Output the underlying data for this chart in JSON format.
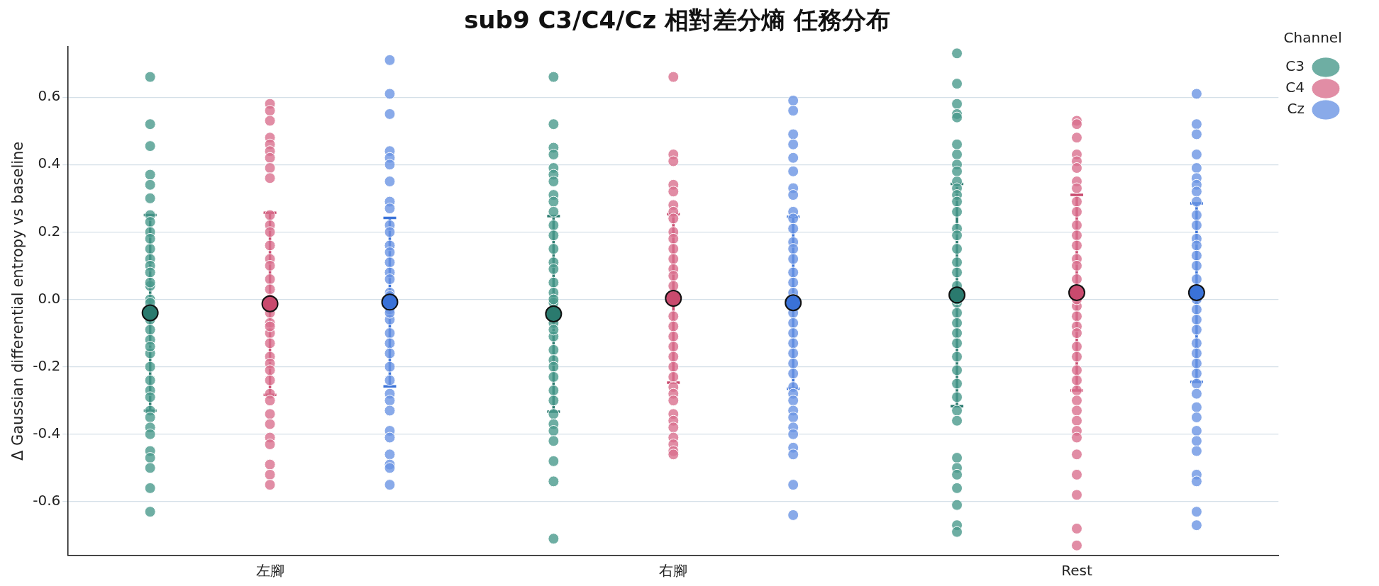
{
  "chart_data": {
    "type": "scatter",
    "title": "sub9 C3/C4/Cz 相對差分熵 任務分布",
    "ylabel": "Δ Gaussian differential entropy vs baseline",
    "categories": [
      "左腳",
      "右腳",
      "Rest"
    ],
    "ylim": [
      -0.76,
      0.75
    ],
    "yticks": [
      -0.6,
      -0.4,
      -0.2,
      {
        "value": 0,
        "label": "0.0"
      },
      0.2,
      0.4,
      0.6
    ],
    "grid": "y",
    "legend": "top right",
    "legend_title": "Channel",
    "marker": "circle",
    "series": [
      {
        "name": "C3",
        "color": "#4a9a8c",
        "x": [
          "左腳",
          "左腳",
          "左腳",
          "左腳",
          "左腳",
          "左腳",
          "左腳",
          "左腳",
          "左腳",
          "左腳",
          "左腳",
          "左腳",
          "左腳",
          "左腳",
          "左腳",
          "左腳",
          "左腳",
          "左腳",
          "左腳",
          "左腳",
          "左腳",
          "左腳",
          "左腳",
          "左腳",
          "左腳",
          "左腳",
          "左腳",
          "左腳",
          "左腳",
          "左腳",
          "左腳",
          "左腳",
          "左腳",
          "左腳",
          "左腳",
          "左腳",
          "左腳",
          "左腳",
          "右腳",
          "右腳",
          "右腳",
          "右腳",
          "右腳",
          "右腳",
          "右腳",
          "右腳",
          "右腳",
          "右腳",
          "右腳",
          "右腳",
          "右腳",
          "右腳",
          "右腳",
          "右腳",
          "右腳",
          "右腳",
          "右腳",
          "右腳",
          "右腳",
          "右腳",
          "右腳",
          "右腳",
          "右腳",
          "右腳",
          "右腳",
          "右腳",
          "右腳",
          "右腳",
          "右腳",
          "右腳",
          "右腳",
          "右腳",
          "右腳",
          "右腳",
          "Rest",
          "Rest",
          "Rest",
          "Rest",
          "Rest",
          "Rest",
          "Rest",
          "Rest",
          "Rest",
          "Rest",
          "Rest",
          "Rest",
          "Rest",
          "Rest",
          "Rest",
          "Rest",
          "Rest",
          "Rest",
          "Rest",
          "Rest",
          "Rest",
          "Rest",
          "Rest",
          "Rest",
          "Rest",
          "Rest",
          "Rest",
          "Rest",
          "Rest",
          "Rest",
          "Rest",
          "Rest",
          "Rest",
          "Rest",
          "Rest",
          "Rest",
          "Rest",
          "Rest",
          "Rest",
          "Rest"
        ],
        "values": [
          0.66,
          0.52,
          0.455,
          0.37,
          0.34,
          0.3,
          0.25,
          0.23,
          0.2,
          0.15,
          0.12,
          0.1,
          0.08,
          0.04,
          0.0,
          -0.01,
          null,
          -0.06,
          -0.09,
          -0.12,
          -0.16,
          -0.2,
          -0.24,
          -0.27,
          -0.29,
          -0.33,
          -0.35,
          -0.38,
          -0.4,
          -0.45,
          -0.47,
          -0.5,
          -0.56,
          -0.63,
          0.05,
          null,
          0.18,
          -0.14,
          0.66,
          0.52,
          0.45,
          0.43,
          0.39,
          0.37,
          0.35,
          0.31,
          0.29,
          0.26,
          0.22,
          0.19,
          0.15,
          0.11,
          0.09,
          0.05,
          0.02,
          -0.01,
          null,
          -0.07,
          -0.11,
          -0.15,
          -0.18,
          -0.2,
          -0.23,
          -0.27,
          -0.3,
          -0.34,
          -0.37,
          -0.39,
          -0.42,
          -0.48,
          -0.54,
          -0.71,
          0.0,
          -0.09,
          0.73,
          0.64,
          0.58,
          0.55,
          0.54,
          0.46,
          0.43,
          0.4,
          0.38,
          0.35,
          0.33,
          0.31,
          0.29,
          0.26,
          0.21,
          0.19,
          0.15,
          0.11,
          0.08,
          0.04,
          null,
          -0.01,
          -0.04,
          -0.07,
          -0.1,
          -0.13,
          -0.17,
          -0.21,
          -0.25,
          -0.29,
          -0.33,
          -0.36,
          -0.47,
          -0.5,
          -0.52,
          -0.56,
          -0.61,
          -0.67,
          -0.69,
          0.0
        ]
      },
      {
        "name": "C4",
        "color": "#d9708f",
        "x": [
          "左腳",
          "左腳",
          "左腳",
          "左腳",
          "左腳",
          "左腳",
          "左腳",
          "左腳",
          "左腳",
          "左腳",
          "左腳",
          "左腳",
          "左腳",
          "左腳",
          "左腳",
          "左腳",
          "左腳",
          "左腳",
          "左腳",
          "左腳",
          "左腳",
          "左腳",
          "左腳",
          "左腳",
          "左腳",
          "左腳",
          "左腳",
          "左腳",
          "左腳",
          "左腳",
          "左腳",
          "左腳",
          "左腳",
          "左腳",
          "左腳",
          "左腳",
          "左腳",
          "右腳",
          "右腳",
          "右腳",
          "右腳",
          "右腳",
          "右腳",
          "右腳",
          "右腳",
          "右腳",
          "右腳",
          "右腳",
          "右腳",
          "右腳",
          "右腳",
          "右腳",
          "右腳",
          "右腳",
          "右腳",
          "右腳",
          "右腳",
          "右腳",
          "右腳",
          "右腳",
          "右腳",
          "右腳",
          "右腳",
          "右腳",
          "右腳",
          "右腳",
          "右腳",
          "右腳",
          "右腳",
          "右腳",
          "右腳",
          "右腳",
          "Rest",
          "Rest",
          "Rest",
          "Rest",
          "Rest",
          "Rest",
          "Rest",
          "Rest",
          "Rest",
          "Rest",
          "Rest",
          "Rest",
          "Rest",
          "Rest",
          "Rest",
          "Rest",
          "Rest",
          "Rest",
          "Rest",
          "Rest",
          "Rest",
          "Rest",
          "Rest",
          "Rest",
          "Rest",
          "Rest",
          "Rest",
          "Rest",
          "Rest",
          "Rest",
          "Rest",
          "Rest",
          "Rest",
          "Rest",
          "Rest",
          "Rest",
          "Rest"
        ],
        "values": [
          0.58,
          0.56,
          0.53,
          0.48,
          0.46,
          0.44,
          0.42,
          0.39,
          0.36,
          0.25,
          0.22,
          0.2,
          0.16,
          0.12,
          0.1,
          0.06,
          0.03,
          null,
          -0.04,
          -0.07,
          -0.1,
          -0.13,
          -0.17,
          -0.19,
          -0.21,
          -0.24,
          -0.28,
          -0.3,
          -0.34,
          -0.37,
          -0.41,
          -0.43,
          -0.49,
          -0.52,
          -0.55,
          0.0,
          -0.08,
          0.66,
          0.43,
          0.41,
          0.34,
          0.32,
          0.28,
          0.26,
          0.24,
          0.2,
          0.18,
          0.15,
          0.12,
          0.09,
          0.07,
          0.04,
          null,
          null,
          -0.05,
          -0.08,
          -0.11,
          -0.14,
          -0.17,
          -0.2,
          -0.23,
          -0.26,
          -0.28,
          -0.3,
          -0.34,
          -0.36,
          -0.38,
          -0.41,
          -0.43,
          -0.45,
          -0.46,
          null,
          0.53,
          0.52,
          0.48,
          0.43,
          0.41,
          0.39,
          0.35,
          0.33,
          0.29,
          0.26,
          0.22,
          0.19,
          0.16,
          0.12,
          0.1,
          0.06,
          null,
          -0.02,
          -0.05,
          -0.08,
          -0.1,
          -0.14,
          -0.17,
          -0.21,
          -0.24,
          -0.27,
          -0.3,
          -0.33,
          -0.36,
          -0.39,
          -0.41,
          -0.46,
          -0.52,
          -0.58,
          -0.68,
          -0.73,
          0.0
        ]
      },
      {
        "name": "Cz",
        "color": "#6b95e3",
        "x": [
          "左腳",
          "左腳",
          "左腳",
          "左腳",
          "左腳",
          "左腳",
          "左腳",
          "左腳",
          "左腳",
          "左腳",
          "左腳",
          "左腳",
          "左腳",
          "左腳",
          "左腳",
          "左腳",
          "左腳",
          "左腳",
          "左腳",
          "左腳",
          "左腳",
          "左腳",
          "左腳",
          "左腳",
          "左腳",
          "左腳",
          "左腳",
          "左腳",
          "左腳",
          "左腳",
          "左腳",
          "左腳",
          "左腳",
          "左腳",
          "左腳",
          "右腳",
          "右腳",
          "右腳",
          "右腳",
          "右腳",
          "右腳",
          "右腳",
          "右腳",
          "右腳",
          "右腳",
          "右腳",
          "右腳",
          "右腳",
          "右腳",
          "右腳",
          "右腳",
          "右腳",
          "右腳",
          "右腳",
          "右腳",
          "右腳",
          "右腳",
          "右腳",
          "右腳",
          "右腳",
          "右腳",
          "右腳",
          "右腳",
          "右腳",
          "右腳",
          "右腳",
          "右腳",
          "右腳",
          "右腳",
          "右腳",
          "右腳",
          "右腳",
          "Rest",
          "Rest",
          "Rest",
          "Rest",
          "Rest",
          "Rest",
          "Rest",
          "Rest",
          "Rest",
          "Rest",
          "Rest",
          "Rest",
          "Rest",
          "Rest",
          "Rest",
          "Rest",
          "Rest",
          "Rest",
          "Rest",
          "Rest",
          "Rest",
          "Rest",
          "Rest",
          "Rest",
          "Rest",
          "Rest",
          "Rest",
          "Rest",
          "Rest",
          "Rest",
          "Rest",
          "Rest",
          "Rest",
          "Rest",
          "Rest",
          "Rest"
        ],
        "values": [
          0.71,
          0.61,
          0.55,
          0.44,
          0.42,
          0.4,
          0.35,
          0.29,
          0.27,
          0.22,
          0.2,
          0.16,
          0.14,
          0.11,
          0.08,
          0.06,
          0.02,
          0.01,
          -0.03,
          -0.06,
          -0.1,
          -0.13,
          -0.16,
          -0.2,
          -0.24,
          -0.28,
          -0.3,
          -0.33,
          -0.39,
          -0.41,
          -0.46,
          -0.49,
          -0.5,
          -0.55,
          -0.04,
          0.59,
          0.56,
          0.49,
          0.46,
          0.42,
          0.38,
          0.33,
          0.31,
          0.26,
          0.24,
          0.21,
          0.17,
          0.15,
          0.12,
          0.08,
          0.05,
          0.02,
          null,
          -0.04,
          -0.07,
          -0.1,
          -0.13,
          -0.16,
          -0.19,
          -0.22,
          -0.26,
          -0.28,
          -0.3,
          -0.33,
          -0.35,
          -0.38,
          -0.4,
          -0.44,
          -0.46,
          -0.55,
          -0.64,
          0.0,
          0.61,
          0.52,
          0.49,
          0.43,
          0.39,
          0.36,
          0.34,
          0.32,
          0.29,
          0.25,
          0.22,
          0.18,
          0.16,
          0.13,
          0.1,
          0.06,
          null,
          0.0,
          -0.03,
          -0.06,
          -0.09,
          -0.13,
          -0.16,
          -0.19,
          -0.22,
          -0.25,
          -0.28,
          -0.32,
          -0.35,
          -0.39,
          -0.42,
          -0.45,
          -0.52,
          -0.54,
          -0.63,
          -0.67
        ]
      },
      {
        "color": "#2a7a6e",
        "x": [
          "左腳",
          "右腳",
          "Rest"
        ],
        "values": [
          -0.04,
          -0.043,
          0.013
        ],
        "errors": [
          0.29,
          0.29,
          0.33
        ]
      },
      {
        "color": "#c94a6e",
        "x": [
          "左腳",
          "右腳",
          "Rest"
        ],
        "values": [
          -0.013,
          0.003,
          0.02
        ],
        "errors": [
          0.27,
          0.25,
          0.29
        ]
      },
      {
        "color": "#3a72d8",
        "x": [
          "左腳",
          "右腳",
          "Rest"
        ],
        "values": [
          -0.008,
          -0.01,
          0.02
        ],
        "errors": [
          0.25,
          0.255,
          0.265
        ]
      }
    ]
  }
}
